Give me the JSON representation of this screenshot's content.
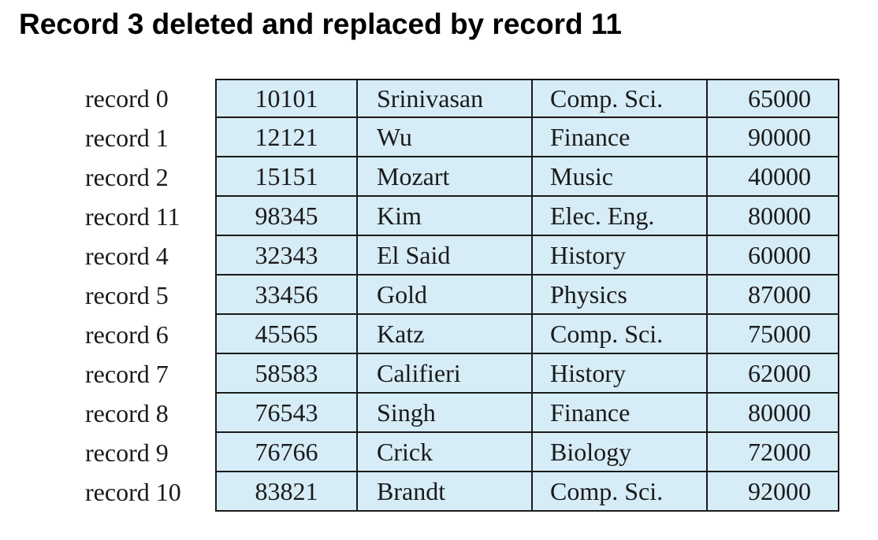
{
  "title": "Record 3 deleted and replaced by record 11",
  "records": [
    {
      "label": "record 0",
      "id": "10101",
      "name": "Srinivasan",
      "dept": "Comp. Sci.",
      "salary": "65000"
    },
    {
      "label": "record 1",
      "id": "12121",
      "name": "Wu",
      "dept": "Finance",
      "salary": "90000"
    },
    {
      "label": "record 2",
      "id": "15151",
      "name": "Mozart",
      "dept": "Music",
      "salary": "40000"
    },
    {
      "label": "record 11",
      "id": "98345",
      "name": "Kim",
      "dept": "Elec. Eng.",
      "salary": "80000"
    },
    {
      "label": "record 4",
      "id": "32343",
      "name": "El Said",
      "dept": "History",
      "salary": "60000"
    },
    {
      "label": "record 5",
      "id": "33456",
      "name": "Gold",
      "dept": "Physics",
      "salary": "87000"
    },
    {
      "label": "record 6",
      "id": "45565",
      "name": "Katz",
      "dept": "Comp. Sci.",
      "salary": "75000"
    },
    {
      "label": "record 7",
      "id": "58583",
      "name": "Califieri",
      "dept": "History",
      "salary": "62000"
    },
    {
      "label": "record 8",
      "id": "76543",
      "name": "Singh",
      "dept": "Finance",
      "salary": "80000"
    },
    {
      "label": "record 9",
      "id": "76766",
      "name": "Crick",
      "dept": "Biology",
      "salary": "72000"
    },
    {
      "label": "record 10",
      "id": "83821",
      "name": "Brandt",
      "dept": "Comp. Sci.",
      "salary": "92000"
    }
  ],
  "colors": {
    "cell_fill": "#d6ecf7",
    "border": "#1a1a1a",
    "text": "#1a1a1a"
  }
}
